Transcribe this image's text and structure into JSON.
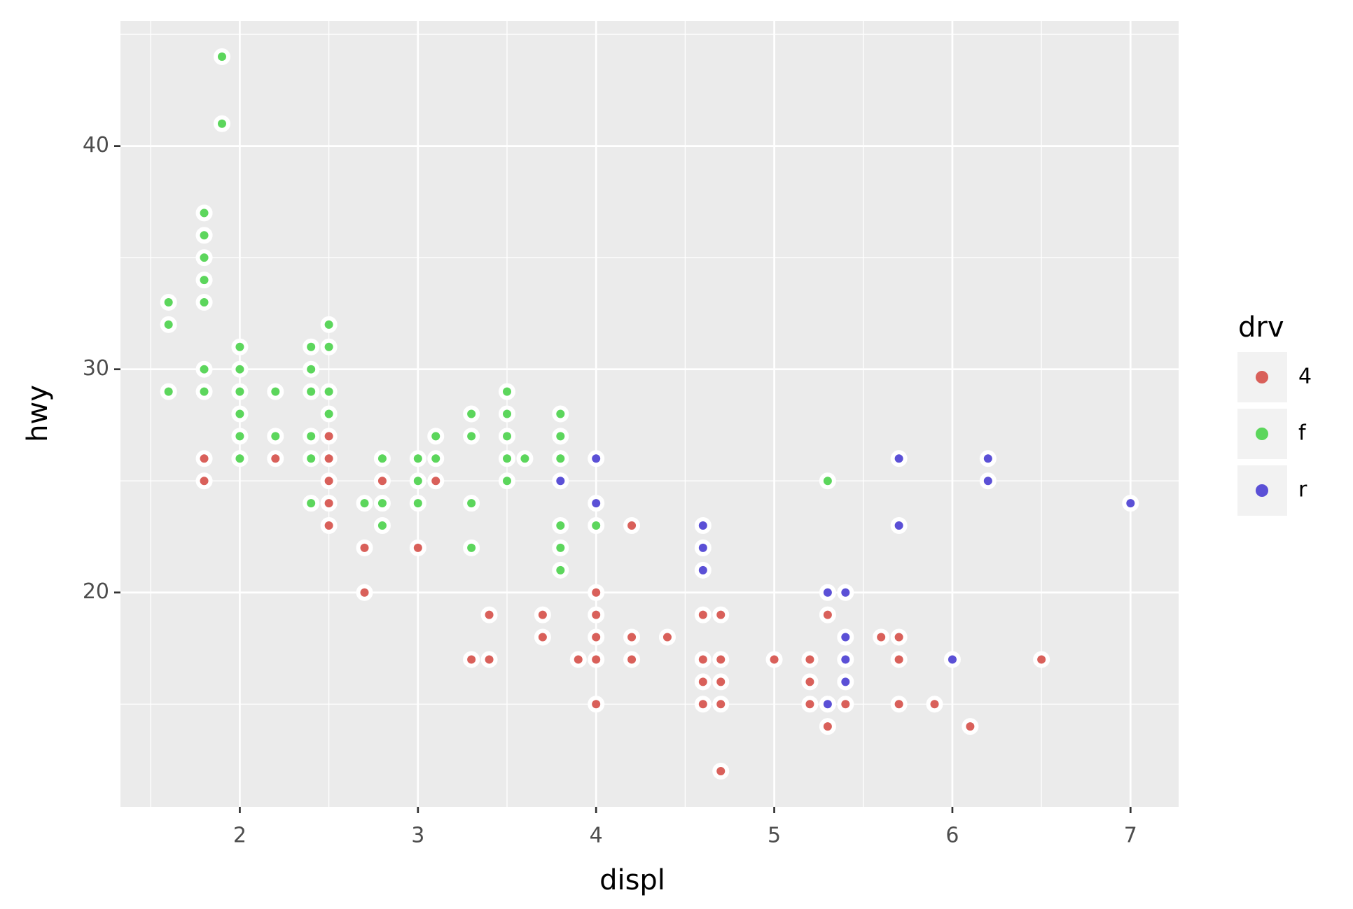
{
  "chart_data": {
    "type": "scatter",
    "xlabel": "displ",
    "ylabel": "hwy",
    "xlim": [
      1.33,
      7.27
    ],
    "ylim": [
      10.4,
      45.6
    ],
    "xticks": [
      2,
      3,
      4,
      5,
      6,
      7
    ],
    "yticks": [
      20,
      30,
      40
    ],
    "xminor": [
      1.5,
      2.5,
      3.5,
      4.5,
      5.5,
      6.5
    ],
    "yminor": [
      15,
      25,
      35,
      45
    ],
    "grid": true,
    "legend_title": "drv",
    "legend_position": "right",
    "series": [
      {
        "name": "4",
        "color": "#d9605a",
        "x": [
          1.8,
          1.8,
          2.2,
          2.5,
          2.5,
          2.5,
          2.5,
          2.5,
          2.7,
          2.7,
          2.8,
          3.0,
          3.1,
          3.3,
          3.4,
          3.4,
          3.7,
          3.7,
          3.9,
          4.0,
          4.0,
          4.0,
          4.0,
          4.0,
          4.2,
          4.2,
          4.2,
          4.4,
          4.6,
          4.6,
          4.6,
          4.6,
          4.7,
          4.7,
          4.7,
          4.7,
          4.7,
          5.0,
          5.2,
          5.2,
          5.2,
          5.3,
          5.3,
          5.4,
          5.6,
          5.7,
          5.7,
          5.7,
          5.9,
          6.1,
          6.5
        ],
        "y": [
          26,
          25,
          26,
          27,
          26,
          25,
          24,
          23,
          22,
          20,
          25,
          22,
          25,
          17,
          19,
          17,
          19,
          18,
          17,
          20,
          19,
          18,
          17,
          15,
          23,
          18,
          17,
          18,
          19,
          17,
          16,
          15,
          19,
          17,
          16,
          15,
          12,
          17,
          17,
          16,
          15,
          19,
          14,
          15,
          18,
          18,
          17,
          15,
          15,
          14,
          17
        ]
      },
      {
        "name": "f",
        "color": "#5cd65c",
        "x": [
          1.6,
          1.6,
          1.6,
          1.8,
          1.8,
          1.8,
          1.8,
          1.8,
          1.8,
          1.8,
          1.9,
          1.9,
          2.0,
          2.0,
          2.0,
          2.0,
          2.0,
          2.0,
          2.2,
          2.2,
          2.4,
          2.4,
          2.4,
          2.4,
          2.4,
          2.4,
          2.5,
          2.5,
          2.5,
          2.5,
          2.7,
          2.8,
          2.8,
          2.8,
          3.0,
          3.0,
          3.0,
          3.1,
          3.1,
          3.3,
          3.3,
          3.3,
          3.3,
          3.5,
          3.5,
          3.5,
          3.5,
          3.5,
          3.6,
          3.8,
          3.8,
          3.8,
          3.8,
          3.8,
          3.8,
          4.0,
          5.3
        ],
        "y": [
          33,
          32,
          29,
          37,
          36,
          35,
          34,
          33,
          30,
          29,
          44,
          41,
          31,
          30,
          29,
          28,
          27,
          26,
          29,
          27,
          31,
          30,
          29,
          27,
          26,
          24,
          32,
          31,
          29,
          28,
          24,
          26,
          24,
          23,
          26,
          25,
          24,
          27,
          26,
          28,
          27,
          24,
          22,
          29,
          28,
          27,
          26,
          25,
          26,
          28,
          27,
          26,
          23,
          22,
          21,
          23,
          25
        ]
      },
      {
        "name": "r",
        "color": "#5b50d6",
        "x": [
          3.8,
          4.0,
          4.0,
          4.6,
          4.6,
          4.6,
          5.3,
          5.3,
          5.4,
          5.4,
          5.4,
          5.4,
          5.7,
          5.7,
          6.0,
          6.2,
          6.2,
          7.0
        ],
        "y": [
          25,
          26,
          24,
          23,
          22,
          21,
          20,
          15,
          20,
          18,
          17,
          16,
          26,
          23,
          17,
          26,
          25,
          24
        ]
      }
    ]
  }
}
